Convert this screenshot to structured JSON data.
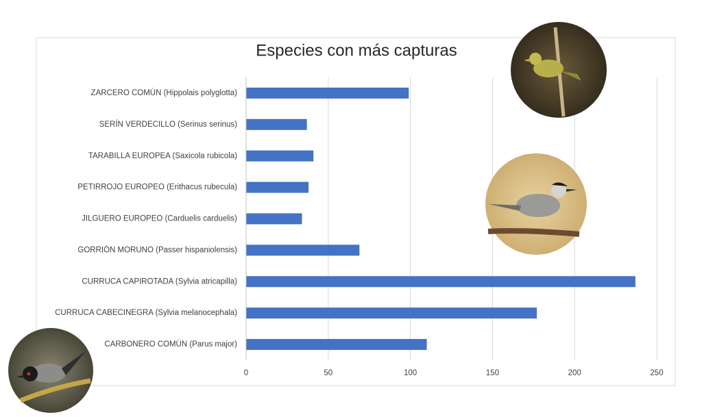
{
  "chart_data": {
    "type": "bar",
    "orientation": "horizontal",
    "title": "Especies con más capturas",
    "categories": [
      "ZARCERO COMÚN (Hippolais polyglotta)",
      "SERÍN VERDECILLO (Serinus serinus)",
      "TARABILLA EUROPEA (Saxicola rubicola)",
      "PETIRROJO EUROPEO (Erithacus rubecula)",
      "JILGUERO EUROPEO (Carduelis carduelis)",
      "GORRIÓN MORUNO (Passer hispaniolensis)",
      "CURRUCA CAPIROTADA (Sylvia atricapilla)",
      "CURRUCA CABECINEGRA (Sylvia melanocephala)",
      "CARBONERO COMÚN (Parus major)"
    ],
    "values": [
      99,
      37,
      41,
      38,
      34,
      69,
      237,
      177,
      110
    ],
    "color": "#4472c4",
    "xlim": [
      0,
      250
    ],
    "xticks": [
      0,
      50,
      100,
      150,
      200,
      250
    ],
    "grid": true
  }
}
